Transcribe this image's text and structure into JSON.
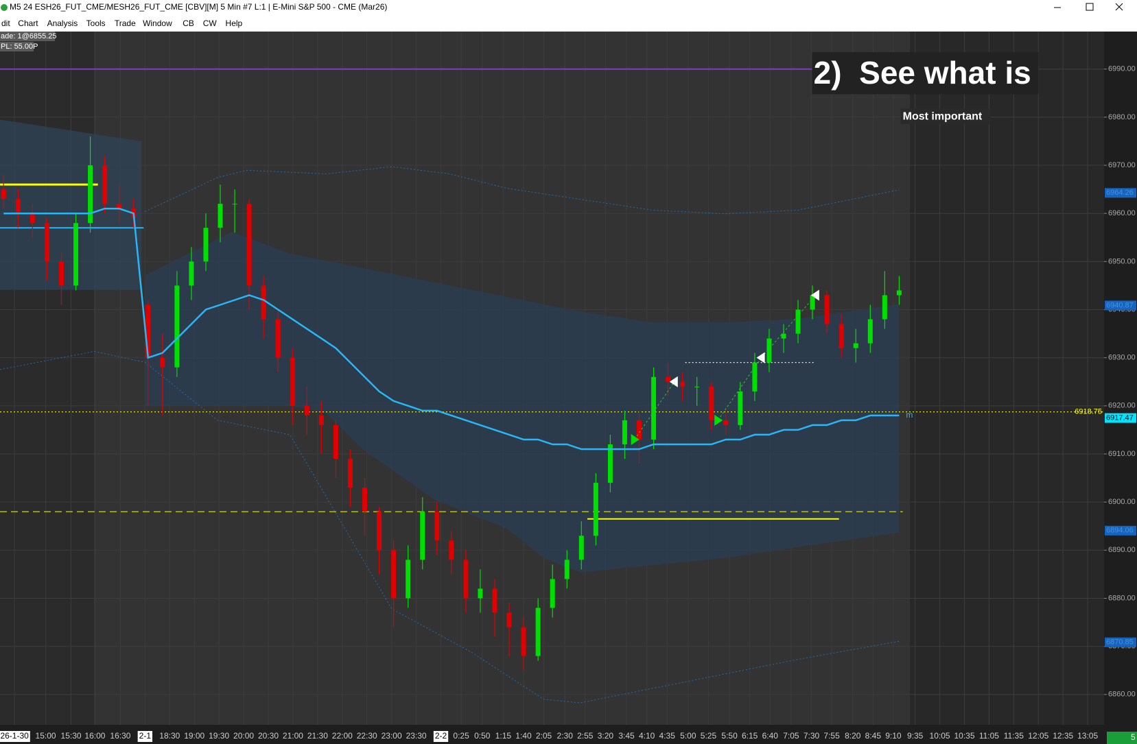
{
  "window": {
    "title": "M5 24 ESH26_FUT_CME/MESH26_FUT_CME [CBV][M]  5 Min  #7 L:1 | E-Mini S&P 500 - CME (Mar26)",
    "menu": [
      "dit",
      "Chart",
      "Analysis",
      "Tools",
      "Trade",
      "Window",
      "CB",
      "CW",
      "Help"
    ],
    "badges": [
      "ade: 1@6855.25",
      "PL: 55.00P"
    ],
    "status": "5"
  },
  "chart_data": {
    "type": "candlestick",
    "annotation": "2)  See what is",
    "subannotation": "Most important",
    "ylim": [
      6853.7,
      6997.8
    ],
    "yticks": [
      {
        "value": 6860,
        "label": "6860.00"
      },
      {
        "value": 6870,
        "label": "6870.00"
      },
      {
        "value": 6880,
        "label": "6880.00"
      },
      {
        "value": 6890,
        "label": "6890.00"
      },
      {
        "value": 6900,
        "label": "6900.00"
      },
      {
        "value": 6910,
        "label": "6910.00"
      },
      {
        "value": 6920,
        "label": "6920.00"
      },
      {
        "value": 6930,
        "label": "6930.00"
      },
      {
        "value": 6940,
        "label": "6940.00"
      },
      {
        "value": 6950,
        "label": "6950.00"
      },
      {
        "value": 6960,
        "label": "6960.00"
      },
      {
        "value": 6970,
        "label": "6970.00"
      },
      {
        "value": 6980,
        "label": "6980.00"
      },
      {
        "value": 6990,
        "label": "6990.00"
      }
    ],
    "x_labels": [
      {
        "label": "26-1-30",
        "session": true
      },
      "15:00",
      "15:30",
      "16:00",
      "16:30",
      {
        "label": "2-1",
        "session": true
      },
      "18:30",
      "19:00",
      "19:30",
      "20:00",
      "20:30",
      "21:00",
      "21:30",
      "22:00",
      "22:30",
      "23:00",
      "23:30",
      {
        "label": "2-2",
        "session": true
      },
      "0:25",
      "0:50",
      "1:15",
      "1:40",
      "2:05",
      "2:30",
      "2:55",
      "3:20",
      "3:45",
      "4:10",
      "4:35",
      "5:00",
      "5:25",
      "5:50",
      "6:15",
      "6:40",
      "7:05",
      "7:30",
      "7:55",
      "8:20",
      "8:45",
      "9:10",
      "9:35",
      "10:05",
      "10:35",
      "11:05",
      "11:35",
      "12:05",
      "12:35",
      "13:05"
    ],
    "up_color": "#00e000",
    "down_color": "#e00000",
    "candles": [
      [
        6965,
        6968,
        6961,
        6963
      ],
      [
        6963,
        6965,
        6957,
        6960
      ],
      [
        6960,
        6962,
        6955,
        6958
      ],
      [
        6958,
        6959,
        6946,
        6950
      ],
      [
        6950,
        6952,
        6941,
        6945
      ],
      [
        6945,
        6960,
        6944,
        6958
      ],
      [
        6958,
        6976,
        6956,
        6970
      ],
      [
        6970,
        6972,
        6960,
        6962
      ],
      [
        6962,
        6966,
        6958,
        6961
      ],
      [
        6961,
        6963,
        6957,
        6959
      ],
      [
        6941,
        6942,
        6920,
        6930
      ],
      [
        6930,
        6935,
        6918,
        6928
      ],
      [
        6928,
        6948,
        6926,
        6945
      ],
      [
        6945,
        6953,
        6942,
        6950
      ],
      [
        6950,
        6960,
        6948,
        6957
      ],
      [
        6957,
        6966,
        6954,
        6962
      ],
      [
        6962,
        6965,
        6956,
        6962
      ],
      [
        6962,
        6963,
        6940,
        6945
      ],
      [
        6945,
        6947,
        6934,
        6938
      ],
      [
        6938,
        6940,
        6927,
        6930
      ],
      [
        6930,
        6932,
        6916,
        6920
      ],
      [
        6920,
        6924,
        6914,
        6918
      ],
      [
        6918,
        6921,
        6910,
        6916
      ],
      [
        6916,
        6917,
        6905,
        6909
      ],
      [
        6909,
        6911,
        6899,
        6903
      ],
      [
        6903,
        6905,
        6893,
        6898
      ],
      [
        6898,
        6899,
        6885,
        6890
      ],
      [
        6890,
        6892,
        6874,
        6880
      ],
      [
        6880,
        6891,
        6878,
        6888
      ],
      [
        6888,
        6901,
        6886,
        6898
      ],
      [
        6898,
        6900,
        6889,
        6892
      ],
      [
        6892,
        6894,
        6885,
        6888
      ],
      [
        6888,
        6890,
        6877,
        6880
      ],
      [
        6880,
        6886,
        6877,
        6882
      ],
      [
        6882,
        6884,
        6872,
        6877
      ],
      [
        6877,
        6879,
        6868,
        6874
      ],
      [
        6874,
        6876,
        6865,
        6868
      ],
      [
        6868,
        6880,
        6867,
        6878
      ],
      [
        6878,
        6887,
        6876,
        6884
      ],
      [
        6884,
        6890,
        6882,
        6888
      ],
      [
        6888,
        6896,
        6886,
        6893
      ],
      [
        6893,
        6906,
        6891,
        6904
      ],
      [
        6904,
        6914,
        6902,
        6912
      ],
      [
        6912,
        6919,
        6909,
        6917
      ],
      [
        6917,
        6919,
        6908,
        6913
      ],
      [
        6913,
        6928,
        6911,
        6926
      ],
      [
        6926,
        6929,
        6922,
        6925
      ],
      [
        6925,
        6927,
        6921,
        6924
      ],
      [
        6924,
        6926,
        6920,
        6924
      ],
      [
        6924,
        6925,
        6915,
        6917
      ],
      [
        6917,
        6919,
        6914,
        6916
      ],
      [
        6916,
        6925,
        6915,
        6923
      ],
      [
        6923,
        6931,
        6921,
        6929
      ],
      [
        6929,
        6936,
        6927,
        6934
      ],
      [
        6934,
        6937,
        6931,
        6935
      ],
      [
        6935,
        6942,
        6933,
        6940
      ],
      [
        6940,
        6945,
        6938,
        6943
      ],
      [
        6943,
        6944,
        6935,
        6937
      ],
      [
        6937,
        6939,
        6930,
        6932
      ],
      [
        6932,
        6936,
        6929,
        6933
      ],
      [
        6933,
        6941,
        6931,
        6938
      ],
      [
        6938,
        6948,
        6936,
        6943
      ],
      [
        6943,
        6947,
        6941,
        6944
      ]
    ],
    "moving_average": {
      "name": "m",
      "color": "#29b6f6",
      "values": [
        6960,
        6960,
        6960,
        6960,
        6960,
        6960,
        6960,
        6961,
        6961,
        6960,
        6930,
        6931,
        6934,
        6937,
        6940,
        6941,
        6942,
        6943,
        6942,
        6940,
        6938,
        6936,
        6934,
        6932,
        6929,
        6926,
        6923,
        6921,
        6920,
        6919,
        6919,
        6918,
        6917,
        6916,
        6915,
        6914,
        6913,
        6913,
        6912,
        6912,
        6911,
        6911,
        6911,
        6911,
        6911,
        6912,
        6912,
        6912,
        6912,
        6912,
        6913,
        6913,
        6914,
        6914,
        6915,
        6915,
        6916,
        6916,
        6917,
        6917,
        6918,
        6918,
        6918
      ]
    },
    "levels": [
      {
        "value": 6990,
        "color": "#7a3fc0",
        "style": "solid"
      },
      {
        "value": 6966,
        "color": "#ffff00",
        "style": "solid"
      },
      {
        "value": 6957,
        "color": "#29b6f6",
        "style": "solid"
      },
      {
        "value": 6918.75,
        "color": "#e6e600",
        "style": "dotted"
      },
      {
        "value": 6898,
        "color": "#e6e600",
        "style": "dashed"
      },
      {
        "value": 6896.5,
        "color": "#ffff00",
        "style": "solid"
      },
      {
        "value": 6929,
        "color": "#ffffff",
        "style": "dotted"
      }
    ],
    "price_labels": [
      {
        "value": 6918.75,
        "color": "#ffff00",
        "style": "text"
      },
      {
        "value": 6917.47,
        "color": "#00e5ff",
        "style": "box"
      },
      {
        "value": 6964.26,
        "color": "#1565c0",
        "style": "box"
      },
      {
        "value": 6940.87,
        "color": "#1565c0",
        "style": "box"
      },
      {
        "value": 6894.06,
        "color": "#1565c0",
        "style": "box"
      },
      {
        "value": 6870.85,
        "color": "#1565c0",
        "style": "box"
      }
    ],
    "signals": [
      {
        "direction": "buy",
        "value": 6913
      },
      {
        "direction": "sell",
        "value": 6925
      },
      {
        "direction": "buy",
        "value": 6917
      },
      {
        "direction": "sell",
        "value": 6930
      },
      {
        "direction": "sell",
        "value": 6943
      }
    ]
  }
}
